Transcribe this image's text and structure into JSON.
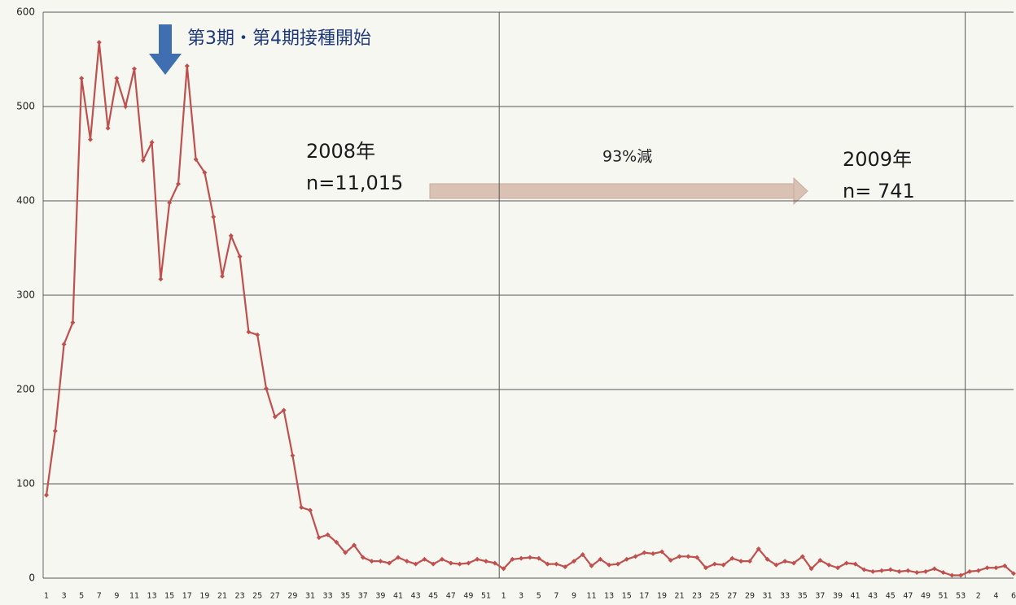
{
  "chart_data": {
    "type": "line",
    "categories": [
      "1",
      null,
      "3",
      null,
      "5",
      null,
      "7",
      null,
      "9",
      null,
      "11",
      null,
      "13",
      null,
      "15",
      null,
      "17",
      null,
      "19",
      null,
      "21",
      null,
      "23",
      null,
      "25",
      null,
      "27",
      null,
      "29",
      null,
      "31",
      null,
      "33",
      null,
      "35",
      null,
      "37",
      null,
      "39",
      null,
      "41",
      null,
      "43",
      null,
      "45",
      null,
      "47",
      null,
      "49",
      null,
      "51",
      null,
      "1",
      null,
      "3",
      null,
      "5",
      null,
      "7",
      null,
      "9",
      null,
      "11",
      null,
      "13",
      null,
      "15",
      null,
      "17",
      null,
      "19",
      null,
      "21",
      null,
      "23",
      null,
      "25",
      null,
      "27",
      null,
      "29",
      null,
      "31",
      null,
      "33",
      null,
      "35",
      null,
      "37",
      null,
      "39",
      null,
      "41",
      null,
      "43",
      null,
      "45",
      null,
      "47",
      null,
      "49",
      null,
      "51",
      null,
      "53",
      null,
      "2",
      null,
      "4",
      null,
      "6"
    ],
    "series": [
      {
        "color": "#c0504d",
        "values": [
          88,
          156,
          248,
          271,
          530,
          465,
          568,
          477,
          530,
          500,
          540,
          443,
          462,
          317,
          398,
          418,
          543,
          444,
          430,
          383,
          320,
          363,
          341,
          261,
          258,
          201,
          171,
          178,
          130,
          75,
          72,
          43,
          46,
          38,
          27,
          35,
          22,
          18,
          18,
          16,
          22,
          18,
          15,
          20,
          15,
          20,
          16,
          15,
          16,
          20,
          18,
          16,
          10,
          20,
          21,
          22,
          21,
          15,
          15,
          12,
          18,
          25,
          13,
          20,
          14,
          15,
          20,
          23,
          27,
          26,
          28,
          19,
          23,
          23,
          22,
          11,
          15,
          14,
          21,
          18,
          18,
          31,
          20,
          14,
          18,
          16,
          23,
          10,
          19,
          14,
          11,
          16,
          15,
          9,
          7,
          8,
          9,
          7,
          8,
          6,
          7,
          10,
          6,
          3,
          3,
          7,
          8,
          11,
          11,
          13,
          5
        ]
      }
    ],
    "ylim": [
      0,
      600
    ],
    "yticks": [
      0,
      100,
      200,
      300,
      400,
      500,
      600
    ],
    "grid": true,
    "annotations": [
      "第3期・第4期接種開始",
      "2008年",
      "n=11,015",
      "93%減",
      "2009年",
      "n= 741"
    ]
  }
}
